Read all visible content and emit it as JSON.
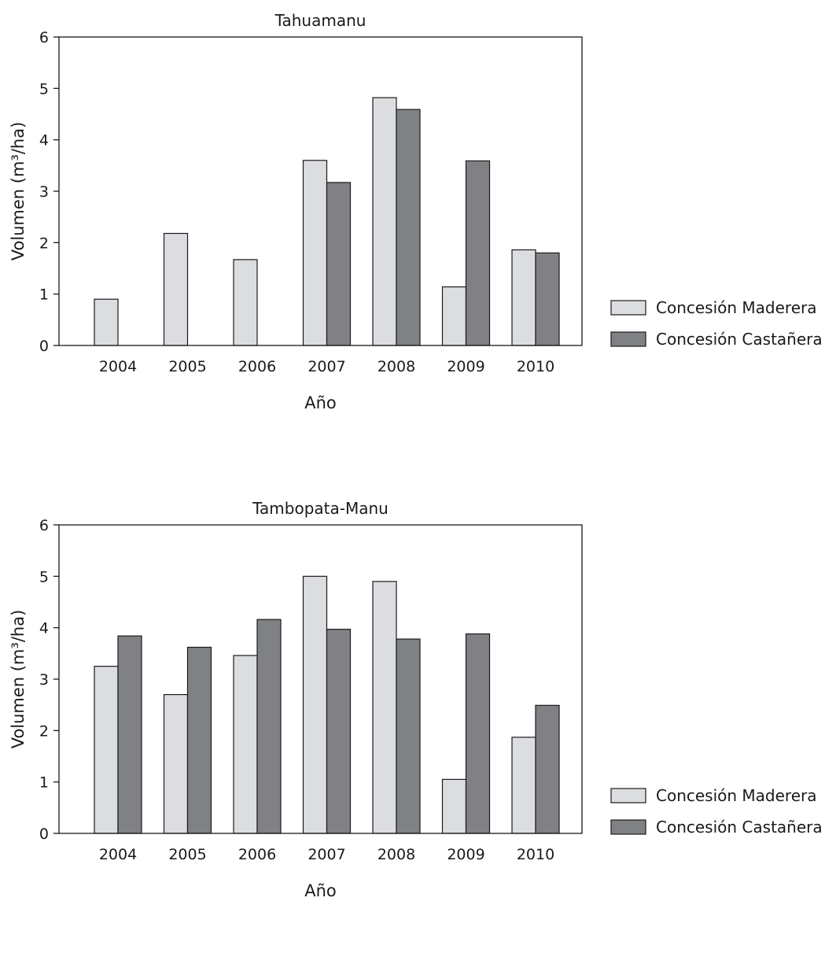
{
  "colors": {
    "maderera": "#dcdde0",
    "castanera": "#808185"
  },
  "chart_data": [
    {
      "type": "bar",
      "title": "Tahuamanu",
      "xlabel": "Año",
      "ylabel": "Volumen (m³/ha)",
      "ylim": [
        0,
        6
      ],
      "yticks": [
        0,
        1,
        2,
        3,
        4,
        5,
        6
      ],
      "grid": false,
      "legend_position": "right",
      "categories": [
        "2004",
        "2005",
        "2006",
        "2007",
        "2008",
        "2009",
        "2010"
      ],
      "series": [
        {
          "name": "Concesión Maderera",
          "values": [
            0.9,
            2.18,
            1.67,
            3.6,
            4.82,
            1.14,
            1.86
          ]
        },
        {
          "name": "Concesión Castañera",
          "values": [
            0,
            0,
            0,
            3.17,
            4.59,
            3.59,
            1.8
          ]
        }
      ]
    },
    {
      "type": "bar",
      "title": "Tambopata-Manu",
      "xlabel": "Año",
      "ylabel": "Volumen (m³/ha)",
      "ylim": [
        0,
        6
      ],
      "yticks": [
        0,
        1,
        2,
        3,
        4,
        5,
        6
      ],
      "grid": false,
      "legend_position": "right",
      "categories": [
        "2004",
        "2005",
        "2006",
        "2007",
        "2008",
        "2009",
        "2010"
      ],
      "series": [
        {
          "name": "Concesión Maderera",
          "values": [
            3.25,
            2.7,
            3.46,
            5.0,
            4.9,
            1.05,
            1.87
          ]
        },
        {
          "name": "Concesión Castañera",
          "values": [
            3.84,
            3.62,
            4.16,
            3.97,
            3.78,
            3.88,
            2.49
          ]
        }
      ]
    }
  ]
}
